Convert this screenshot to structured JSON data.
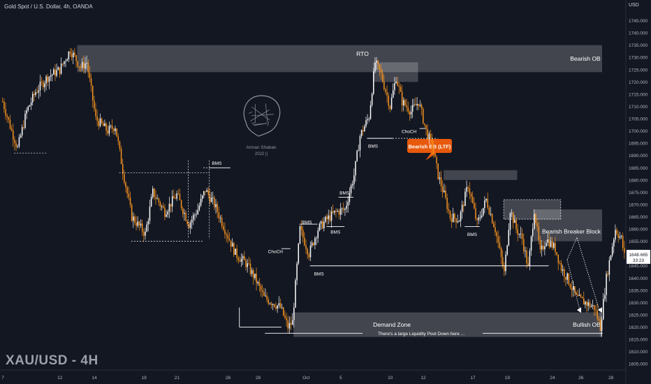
{
  "header": {
    "title": "Gold Spot / U.S. Dollar, 4h, OANDA",
    "currency": "USD",
    "watermark": "XAU/USD - 4H"
  },
  "logo": {
    "name": "Arman Shaban",
    "year": "2022 ||"
  },
  "price_box": {
    "price": "1648.665",
    "countdown": "33:23"
  },
  "colors": {
    "background": "#131722",
    "bull": "#ffffff",
    "bear": "#f7931e",
    "zone": "#ffffff",
    "callout": "#e8590c",
    "text": "#d1d4dc"
  },
  "chart_data": {
    "type": "candlestick",
    "ylim": [
      1602.5,
      1750
    ],
    "y_ticks": [
      "1605.000",
      "1610.000",
      "1615.000",
      "1620.000",
      "1625.000",
      "1630.000",
      "1635.000",
      "1640.000",
      "1645.000",
      "1650.000",
      "1655.000",
      "1660.000",
      "1665.000",
      "1670.000",
      "1675.000",
      "1680.000",
      "1685.000",
      "1690.000",
      "1695.000",
      "1700.000",
      "1705.000",
      "1710.000",
      "1715.000",
      "1720.000",
      "1725.000",
      "1730.000",
      "1735.000",
      "1740.000",
      "1745.000"
    ],
    "x_ticks": [
      "7",
      "12",
      "14",
      "19",
      "21",
      "26",
      "28",
      "Oct",
      "5",
      "10",
      "12",
      "17",
      "19",
      "24",
      "26",
      "28"
    ],
    "path": [
      {
        "i": 0,
        "p": 1712
      },
      {
        "i": 6,
        "p": 1700
      },
      {
        "i": 10,
        "p": 1693
      },
      {
        "i": 16,
        "p": 1708
      },
      {
        "i": 22,
        "p": 1716
      },
      {
        "i": 30,
        "p": 1722
      },
      {
        "i": 38,
        "p": 1725
      },
      {
        "i": 45,
        "p": 1733
      },
      {
        "i": 52,
        "p": 1726
      },
      {
        "i": 56,
        "p": 1728
      },
      {
        "i": 62,
        "p": 1705
      },
      {
        "i": 70,
        "p": 1700
      },
      {
        "i": 75,
        "p": 1702
      },
      {
        "i": 80,
        "p": 1684
      },
      {
        "i": 86,
        "p": 1665
      },
      {
        "i": 95,
        "p": 1658
      },
      {
        "i": 100,
        "p": 1675
      },
      {
        "i": 108,
        "p": 1667
      },
      {
        "i": 116,
        "p": 1674
      },
      {
        "i": 124,
        "p": 1662
      },
      {
        "i": 130,
        "p": 1668
      },
      {
        "i": 135,
        "p": 1676
      },
      {
        "i": 141,
        "p": 1670
      },
      {
        "i": 148,
        "p": 1660
      },
      {
        "i": 155,
        "p": 1650
      },
      {
        "i": 162,
        "p": 1646
      },
      {
        "i": 168,
        "p": 1640
      },
      {
        "i": 174,
        "p": 1632
      },
      {
        "i": 180,
        "p": 1630
      },
      {
        "i": 185,
        "p": 1628
      },
      {
        "i": 190,
        "p": 1620
      },
      {
        "i": 193,
        "p": 1622
      },
      {
        "i": 198,
        "p": 1660
      },
      {
        "i": 204,
        "p": 1650
      },
      {
        "i": 210,
        "p": 1660
      },
      {
        "i": 216,
        "p": 1664
      },
      {
        "i": 222,
        "p": 1667
      },
      {
        "i": 228,
        "p": 1668
      },
      {
        "i": 234,
        "p": 1682
      },
      {
        "i": 238,
        "p": 1698
      },
      {
        "i": 244,
        "p": 1706
      },
      {
        "i": 248,
        "p": 1728
      },
      {
        "i": 252,
        "p": 1723
      },
      {
        "i": 258,
        "p": 1710
      },
      {
        "i": 262,
        "p": 1722
      },
      {
        "i": 266,
        "p": 1712
      },
      {
        "i": 272,
        "p": 1708
      },
      {
        "i": 277,
        "p": 1712
      },
      {
        "i": 282,
        "p": 1700
      },
      {
        "i": 286,
        "p": 1694
      },
      {
        "i": 290,
        "p": 1682
      },
      {
        "i": 294,
        "p": 1674
      },
      {
        "i": 298,
        "p": 1665
      },
      {
        "i": 304,
        "p": 1664
      },
      {
        "i": 310,
        "p": 1678
      },
      {
        "i": 316,
        "p": 1662
      },
      {
        "i": 322,
        "p": 1672
      },
      {
        "i": 328,
        "p": 1660
      },
      {
        "i": 334,
        "p": 1642
      },
      {
        "i": 338,
        "p": 1668
      },
      {
        "i": 342,
        "p": 1660
      },
      {
        "i": 346,
        "p": 1656
      },
      {
        "i": 350,
        "p": 1644
      },
      {
        "i": 354,
        "p": 1668
      },
      {
        "i": 358,
        "p": 1650
      },
      {
        "i": 362,
        "p": 1656
      },
      {
        "i": 368,
        "p": 1652
      },
      {
        "i": 372,
        "p": 1644
      },
      {
        "i": 376,
        "p": 1640
      },
      {
        "i": 382,
        "p": 1632
      },
      {
        "i": 388,
        "p": 1630
      },
      {
        "i": 394,
        "p": 1628
      },
      {
        "i": 398,
        "p": 1620
      },
      {
        "i": 402,
        "p": 1640
      },
      {
        "i": 408,
        "p": 1660
      },
      {
        "i": 412,
        "p": 1656
      },
      {
        "i": 414,
        "p": 1649
      }
    ],
    "zones": [
      {
        "label": "Bearish OB",
        "i0": 50,
        "i1": 999,
        "p0": 1724,
        "p1": 1735
      },
      {
        "label": "RTO",
        "i0": 247,
        "i1": 277,
        "p0": 1720,
        "p1": 1728
      },
      {
        "label": "Bearish BB (LTF)",
        "i0": 294,
        "i1": 343,
        "p0": 1680,
        "p1": 1684
      },
      {
        "label": "",
        "i0": 334,
        "i1": 372,
        "p0": 1664,
        "p1": 1672
      },
      {
        "label": "Bearish Breaker Block",
        "i0": 354,
        "i1": 999,
        "p0": 1655,
        "p1": 1668
      },
      {
        "label": "Demand Zone",
        "i0": 194,
        "i1": 999,
        "p0": 1616,
        "p1": 1626
      },
      {
        "label": "Bullish OB",
        "i0": 398,
        "i1": 999,
        "p0": 1616,
        "p1": 1626
      }
    ],
    "annotations": [
      {
        "text": "BMS",
        "i": 143,
        "p": 1687,
        "line": [
          138,
          152,
          1685
        ]
      },
      {
        "text": "BMS",
        "i": 228,
        "p": 1675,
        "line": [
          224,
          234,
          1673
        ]
      },
      {
        "text": "BMS",
        "i": 203,
        "p": 1663,
        "line": [
          198,
          210,
          1662
        ]
      },
      {
        "text": "BMS",
        "i": 222,
        "p": 1659,
        "line": [
          216,
          228,
          1661
        ]
      },
      {
        "text": "BMS",
        "i": 211,
        "p": 1642,
        "line": [
          205,
          364,
          1645
        ]
      },
      {
        "text": "BMS",
        "i": 247,
        "p": 1694,
        "line": [
          243,
          260,
          1697
        ]
      },
      {
        "text": "BMS",
        "i": 313,
        "p": 1658,
        "line": [
          308,
          318,
          1661
        ]
      },
      {
        "text": "ChoCH",
        "i": 182,
        "p": 1651,
        "line": [
          186,
          192,
          1652
        ]
      },
      {
        "text": "ChoCH",
        "i": 271,
        "p": 1700,
        "line": [
          278,
          282,
          1701
        ]
      }
    ],
    "callout": "Bearish BB (LTF)",
    "liquidity_text": "There's a large Liquidity Pool Down here ..."
  }
}
